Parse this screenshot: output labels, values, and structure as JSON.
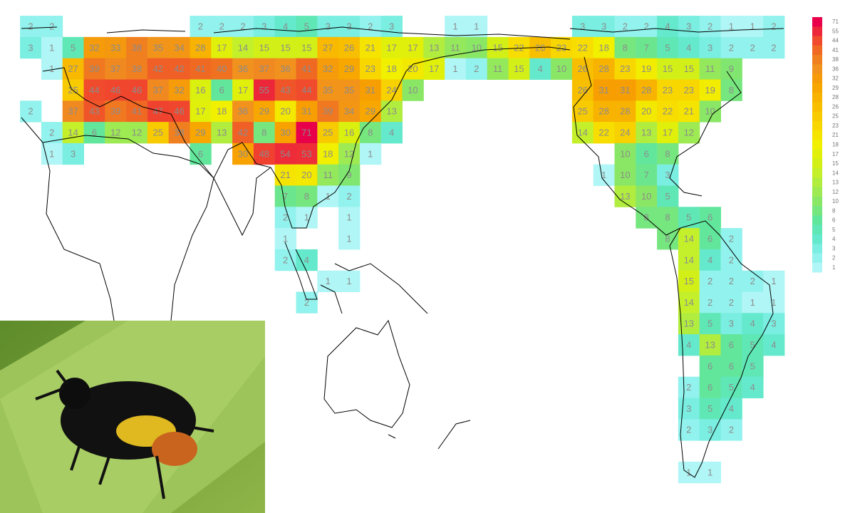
{
  "grid": [
    [
      2,
      2,
      null,
      null,
      null,
      null,
      null,
      null,
      2,
      2,
      2,
      3,
      4,
      5,
      3,
      3,
      2,
      3,
      null,
      null,
      1,
      1,
      null,
      null,
      null,
      null,
      3,
      3,
      2,
      2,
      4,
      3,
      2,
      1,
      1,
      2
    ],
    [
      3,
      1,
      5,
      32,
      33,
      38,
      35,
      34,
      28,
      17,
      14,
      15,
      15,
      15,
      27,
      26,
      21,
      17,
      17,
      13,
      11,
      10,
      15,
      22,
      26,
      23,
      22,
      18,
      8,
      7,
      5,
      4,
      3,
      2,
      2,
      2
    ],
    [
      null,
      1,
      27,
      39,
      37,
      38,
      42,
      42,
      41,
      40,
      36,
      37,
      36,
      41,
      32,
      29,
      23,
      18,
      20,
      17,
      1,
      2,
      11,
      15,
      4,
      10,
      26,
      28,
      23,
      19,
      15,
      15,
      11,
      9,
      null,
      null
    ],
    [
      null,
      null,
      25,
      44,
      46,
      46,
      37,
      32,
      16,
      6,
      17,
      55,
      43,
      44,
      35,
      35,
      31,
      24,
      10,
      null,
      null,
      null,
      null,
      null,
      null,
      null,
      26,
      31,
      31,
      28,
      23,
      23,
      19,
      8,
      null,
      null
    ],
    [
      2,
      null,
      37,
      43,
      39,
      41,
      47,
      46,
      17,
      18,
      36,
      29,
      20,
      31,
      39,
      34,
      29,
      13,
      null,
      null,
      null,
      null,
      null,
      null,
      null,
      null,
      25,
      28,
      28,
      20,
      22,
      21,
      10,
      null,
      null,
      null
    ],
    [
      null,
      2,
      14,
      6,
      12,
      12,
      25,
      38,
      29,
      13,
      42,
      8,
      30,
      71,
      25,
      16,
      8,
      4,
      null,
      null,
      null,
      null,
      null,
      null,
      null,
      null,
      14,
      22,
      24,
      13,
      17,
      12,
      null,
      null,
      null,
      null
    ],
    [
      null,
      1,
      3,
      null,
      null,
      null,
      null,
      null,
      6,
      null,
      30,
      48,
      54,
      53,
      18,
      12,
      1,
      null,
      null,
      null,
      null,
      null,
      null,
      null,
      null,
      null,
      null,
      null,
      10,
      6,
      8,
      null,
      null,
      null,
      null,
      null
    ],
    [
      null,
      null,
      null,
      null,
      null,
      null,
      null,
      null,
      null,
      null,
      null,
      null,
      21,
      20,
      11,
      9,
      null,
      null,
      null,
      null,
      null,
      null,
      null,
      null,
      null,
      null,
      null,
      1,
      10,
      7,
      3,
      null,
      null,
      null,
      null,
      null
    ],
    [
      null,
      null,
      null,
      null,
      null,
      null,
      null,
      null,
      null,
      null,
      null,
      null,
      7,
      8,
      1,
      2,
      null,
      null,
      null,
      null,
      null,
      null,
      null,
      null,
      null,
      null,
      null,
      null,
      13,
      10,
      5,
      null,
      null,
      null,
      null,
      null
    ],
    [
      null,
      null,
      null,
      null,
      null,
      null,
      null,
      null,
      null,
      null,
      null,
      null,
      2,
      1,
      null,
      1,
      null,
      null,
      null,
      null,
      null,
      null,
      null,
      null,
      null,
      null,
      null,
      null,
      null,
      8,
      8,
      5,
      6,
      null,
      null,
      null
    ],
    [
      null,
      null,
      null,
      null,
      null,
      null,
      null,
      null,
      null,
      null,
      null,
      null,
      1,
      null,
      null,
      1,
      null,
      null,
      null,
      null,
      null,
      null,
      null,
      null,
      null,
      null,
      null,
      null,
      null,
      null,
      8,
      14,
      6,
      2,
      null,
      null
    ],
    [
      null,
      null,
      null,
      null,
      null,
      null,
      null,
      null,
      null,
      null,
      null,
      null,
      2,
      4,
      null,
      null,
      null,
      null,
      null,
      null,
      null,
      null,
      null,
      null,
      null,
      null,
      null,
      null,
      null,
      null,
      null,
      14,
      4,
      2,
      null,
      null
    ],
    [
      null,
      null,
      null,
      null,
      null,
      null,
      null,
      null,
      null,
      null,
      null,
      null,
      null,
      null,
      1,
      1,
      null,
      null,
      null,
      null,
      null,
      null,
      null,
      null,
      null,
      null,
      null,
      null,
      null,
      null,
      null,
      15,
      2,
      2,
      2,
      1
    ],
    [
      null,
      null,
      null,
      null,
      null,
      null,
      null,
      null,
      null,
      null,
      null,
      null,
      null,
      2,
      null,
      null,
      null,
      null,
      null,
      null,
      null,
      null,
      null,
      null,
      null,
      null,
      null,
      null,
      null,
      null,
      null,
      14,
      2,
      2,
      1,
      1
    ],
    [
      null,
      null,
      null,
      null,
      null,
      null,
      null,
      null,
      null,
      null,
      null,
      null,
      null,
      null,
      null,
      null,
      null,
      null,
      null,
      null,
      null,
      null,
      null,
      null,
      null,
      null,
      null,
      null,
      null,
      null,
      null,
      13,
      5,
      3,
      4,
      3
    ],
    [
      null,
      null,
      null,
      null,
      null,
      null,
      null,
      null,
      null,
      null,
      null,
      null,
      null,
      null,
      null,
      null,
      null,
      null,
      null,
      null,
      null,
      null,
      null,
      null,
      null,
      null,
      null,
      null,
      null,
      null,
      null,
      4,
      13,
      6,
      5,
      4
    ],
    [
      null,
      null,
      null,
      null,
      null,
      null,
      null,
      null,
      null,
      null,
      null,
      null,
      null,
      null,
      null,
      null,
      null,
      null,
      null,
      null,
      null,
      null,
      null,
      null,
      null,
      null,
      null,
      null,
      null,
      null,
      null,
      null,
      6,
      6,
      5,
      null
    ],
    [
      null,
      null,
      null,
      null,
      null,
      null,
      null,
      null,
      null,
      null,
      null,
      null,
      null,
      null,
      null,
      null,
      null,
      null,
      null,
      null,
      null,
      null,
      null,
      null,
      null,
      null,
      null,
      null,
      null,
      null,
      null,
      2,
      6,
      5,
      4,
      null
    ],
    [
      null,
      null,
      null,
      null,
      null,
      null,
      null,
      null,
      null,
      null,
      null,
      null,
      null,
      null,
      null,
      null,
      null,
      null,
      null,
      null,
      null,
      null,
      null,
      null,
      null,
      null,
      null,
      null,
      null,
      null,
      null,
      3,
      5,
      4,
      null,
      null
    ],
    [
      null,
      null,
      null,
      null,
      null,
      null,
      null,
      null,
      null,
      null,
      null,
      null,
      null,
      null,
      null,
      null,
      null,
      null,
      null,
      null,
      null,
      null,
      null,
      null,
      null,
      null,
      null,
      null,
      null,
      null,
      null,
      2,
      3,
      2,
      null,
      null
    ],
    [
      null,
      null,
      null,
      null,
      null,
      null,
      null,
      null,
      null,
      null,
      null,
      null,
      null,
      null,
      null,
      null,
      null,
      null,
      null,
      null,
      null,
      null,
      null,
      null,
      null,
      null,
      null,
      null,
      null,
      null,
      null,
      null,
      null,
      null,
      null,
      null
    ],
    [
      null,
      null,
      null,
      null,
      null,
      null,
      null,
      null,
      null,
      null,
      null,
      null,
      null,
      null,
      null,
      null,
      null,
      null,
      null,
      null,
      null,
      null,
      null,
      null,
      null,
      null,
      null,
      null,
      null,
      null,
      null,
      1,
      1,
      null,
      null,
      null
    ]
  ],
  "legend_ticks": [
    71,
    55,
    44,
    41,
    38,
    36,
    32,
    29,
    28,
    26,
    25,
    23,
    21,
    18,
    17,
    15,
    14,
    13,
    12,
    10,
    8,
    6,
    5,
    4,
    3,
    2,
    1
  ]
}
